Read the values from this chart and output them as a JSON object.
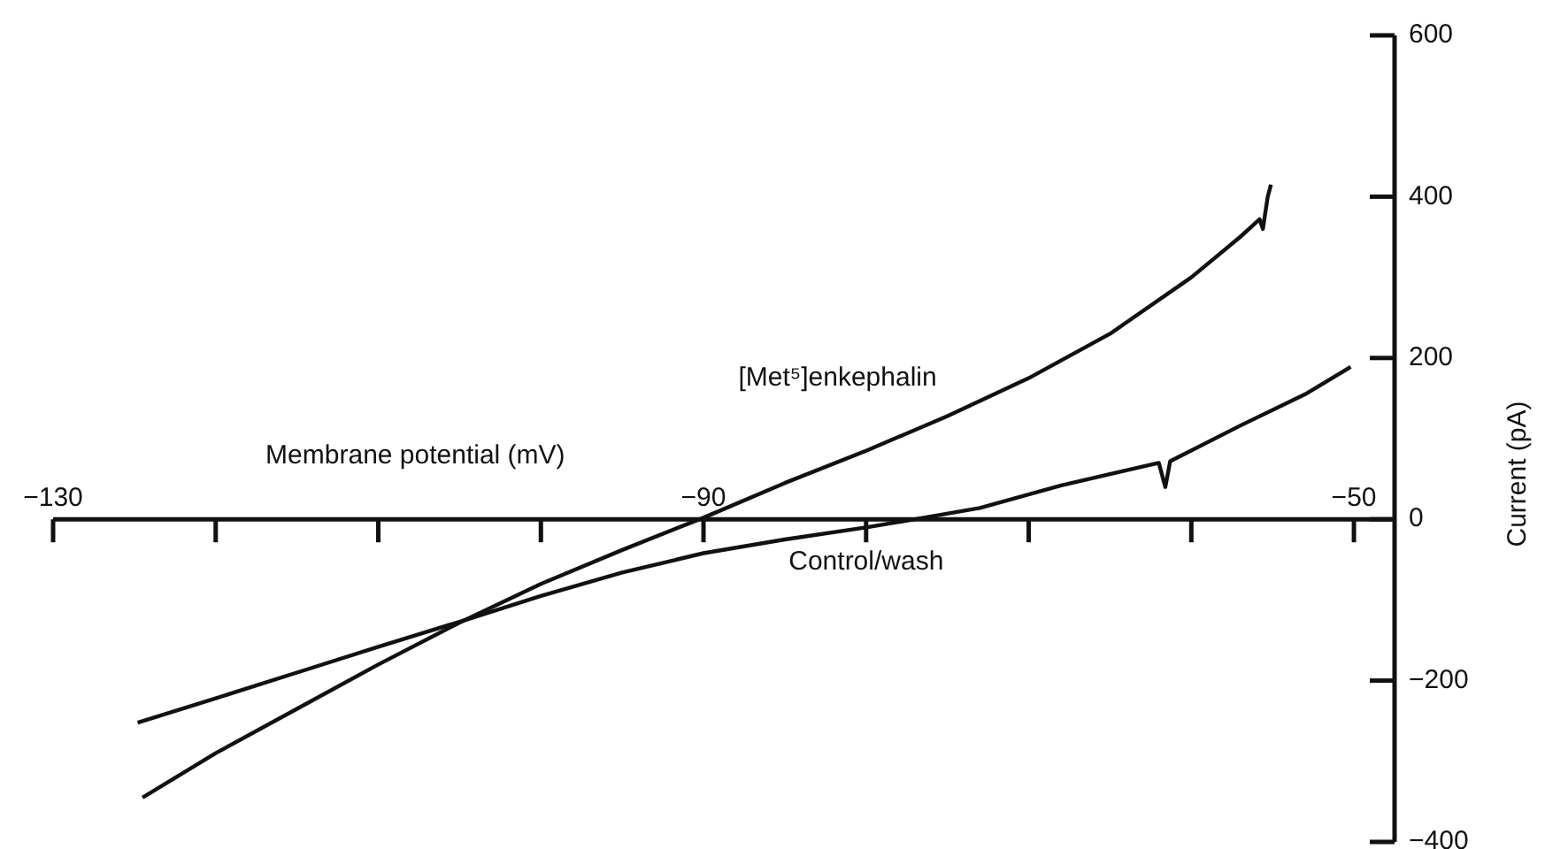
{
  "chart_data": {
    "type": "line",
    "xlabel": "Membrane potential (mV)",
    "ylabel": "Current (pA)",
    "xlim": [
      -130,
      -47.5
    ],
    "ylim": [
      -400,
      600
    ],
    "xticks": [
      -130,
      {
        "value": -120,
        "label": null
      },
      {
        "value": -110,
        "label": null
      },
      {
        "value": -100,
        "label": null
      },
      -90,
      {
        "value": -80,
        "label": null
      },
      {
        "value": -70,
        "label": null
      },
      {
        "value": -60,
        "label": null
      },
      -50
    ],
    "yticks": [
      -400,
      -200,
      0,
      200,
      400,
      600
    ],
    "legend": false,
    "series": [
      {
        "name": "[Met⁵]enkephalin",
        "color": "#111111",
        "x": [
          -124.5,
          -120,
          -115,
          -110,
          -105,
          -100,
          -95,
          -90,
          -85,
          -80,
          -75,
          -70,
          -65,
          -60,
          -57,
          -55.8,
          -55.6,
          -55.3,
          -55.1
        ],
        "values": [
          -345,
          -290,
          -235,
          -180,
          -128,
          -80,
          -38,
          2,
          45,
          85,
          128,
          175,
          230,
          300,
          350,
          372,
          360,
          400,
          415
        ]
      },
      {
        "name": "Control/wash",
        "color": "#111111",
        "x": [
          -124.8,
          -120,
          -115,
          -110,
          -105,
          -100,
          -95,
          -90,
          -85,
          -80,
          -77,
          -73,
          -68,
          -62,
          -61.6,
          -61.3,
          -57,
          -53,
          -50.2
        ],
        "values": [
          -252,
          -222,
          -190,
          -158,
          -127,
          -95,
          -66,
          -42,
          -25,
          -10,
          0,
          14,
          42,
          70,
          40,
          72,
          116,
          155,
          189
        ]
      }
    ]
  }
}
